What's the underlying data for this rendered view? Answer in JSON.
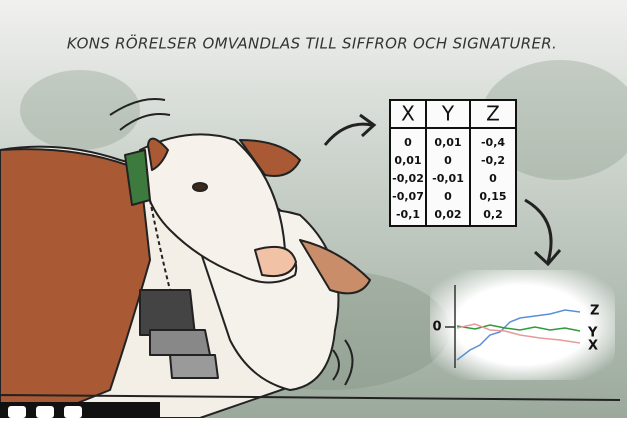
{
  "caption": "KONS RÖRELSER OMVANDLAS TILL SIFFROR OCH SIGNATURER.",
  "table": {
    "headers": [
      "X",
      "Y",
      "Z"
    ],
    "rows": [
      [
        "0",
        "0,01",
        "-0,4"
      ],
      [
        "0,01",
        "0",
        "-0,2"
      ],
      [
        "-0,02",
        "-0,01",
        "0"
      ],
      [
        "-0,07",
        "0",
        "0,15"
      ],
      [
        "-0,1",
        "0,02",
        "0,2"
      ]
    ]
  },
  "signal_plot": {
    "zero_label": "0",
    "series_labels": [
      "Z",
      "Y",
      "X"
    ]
  }
}
